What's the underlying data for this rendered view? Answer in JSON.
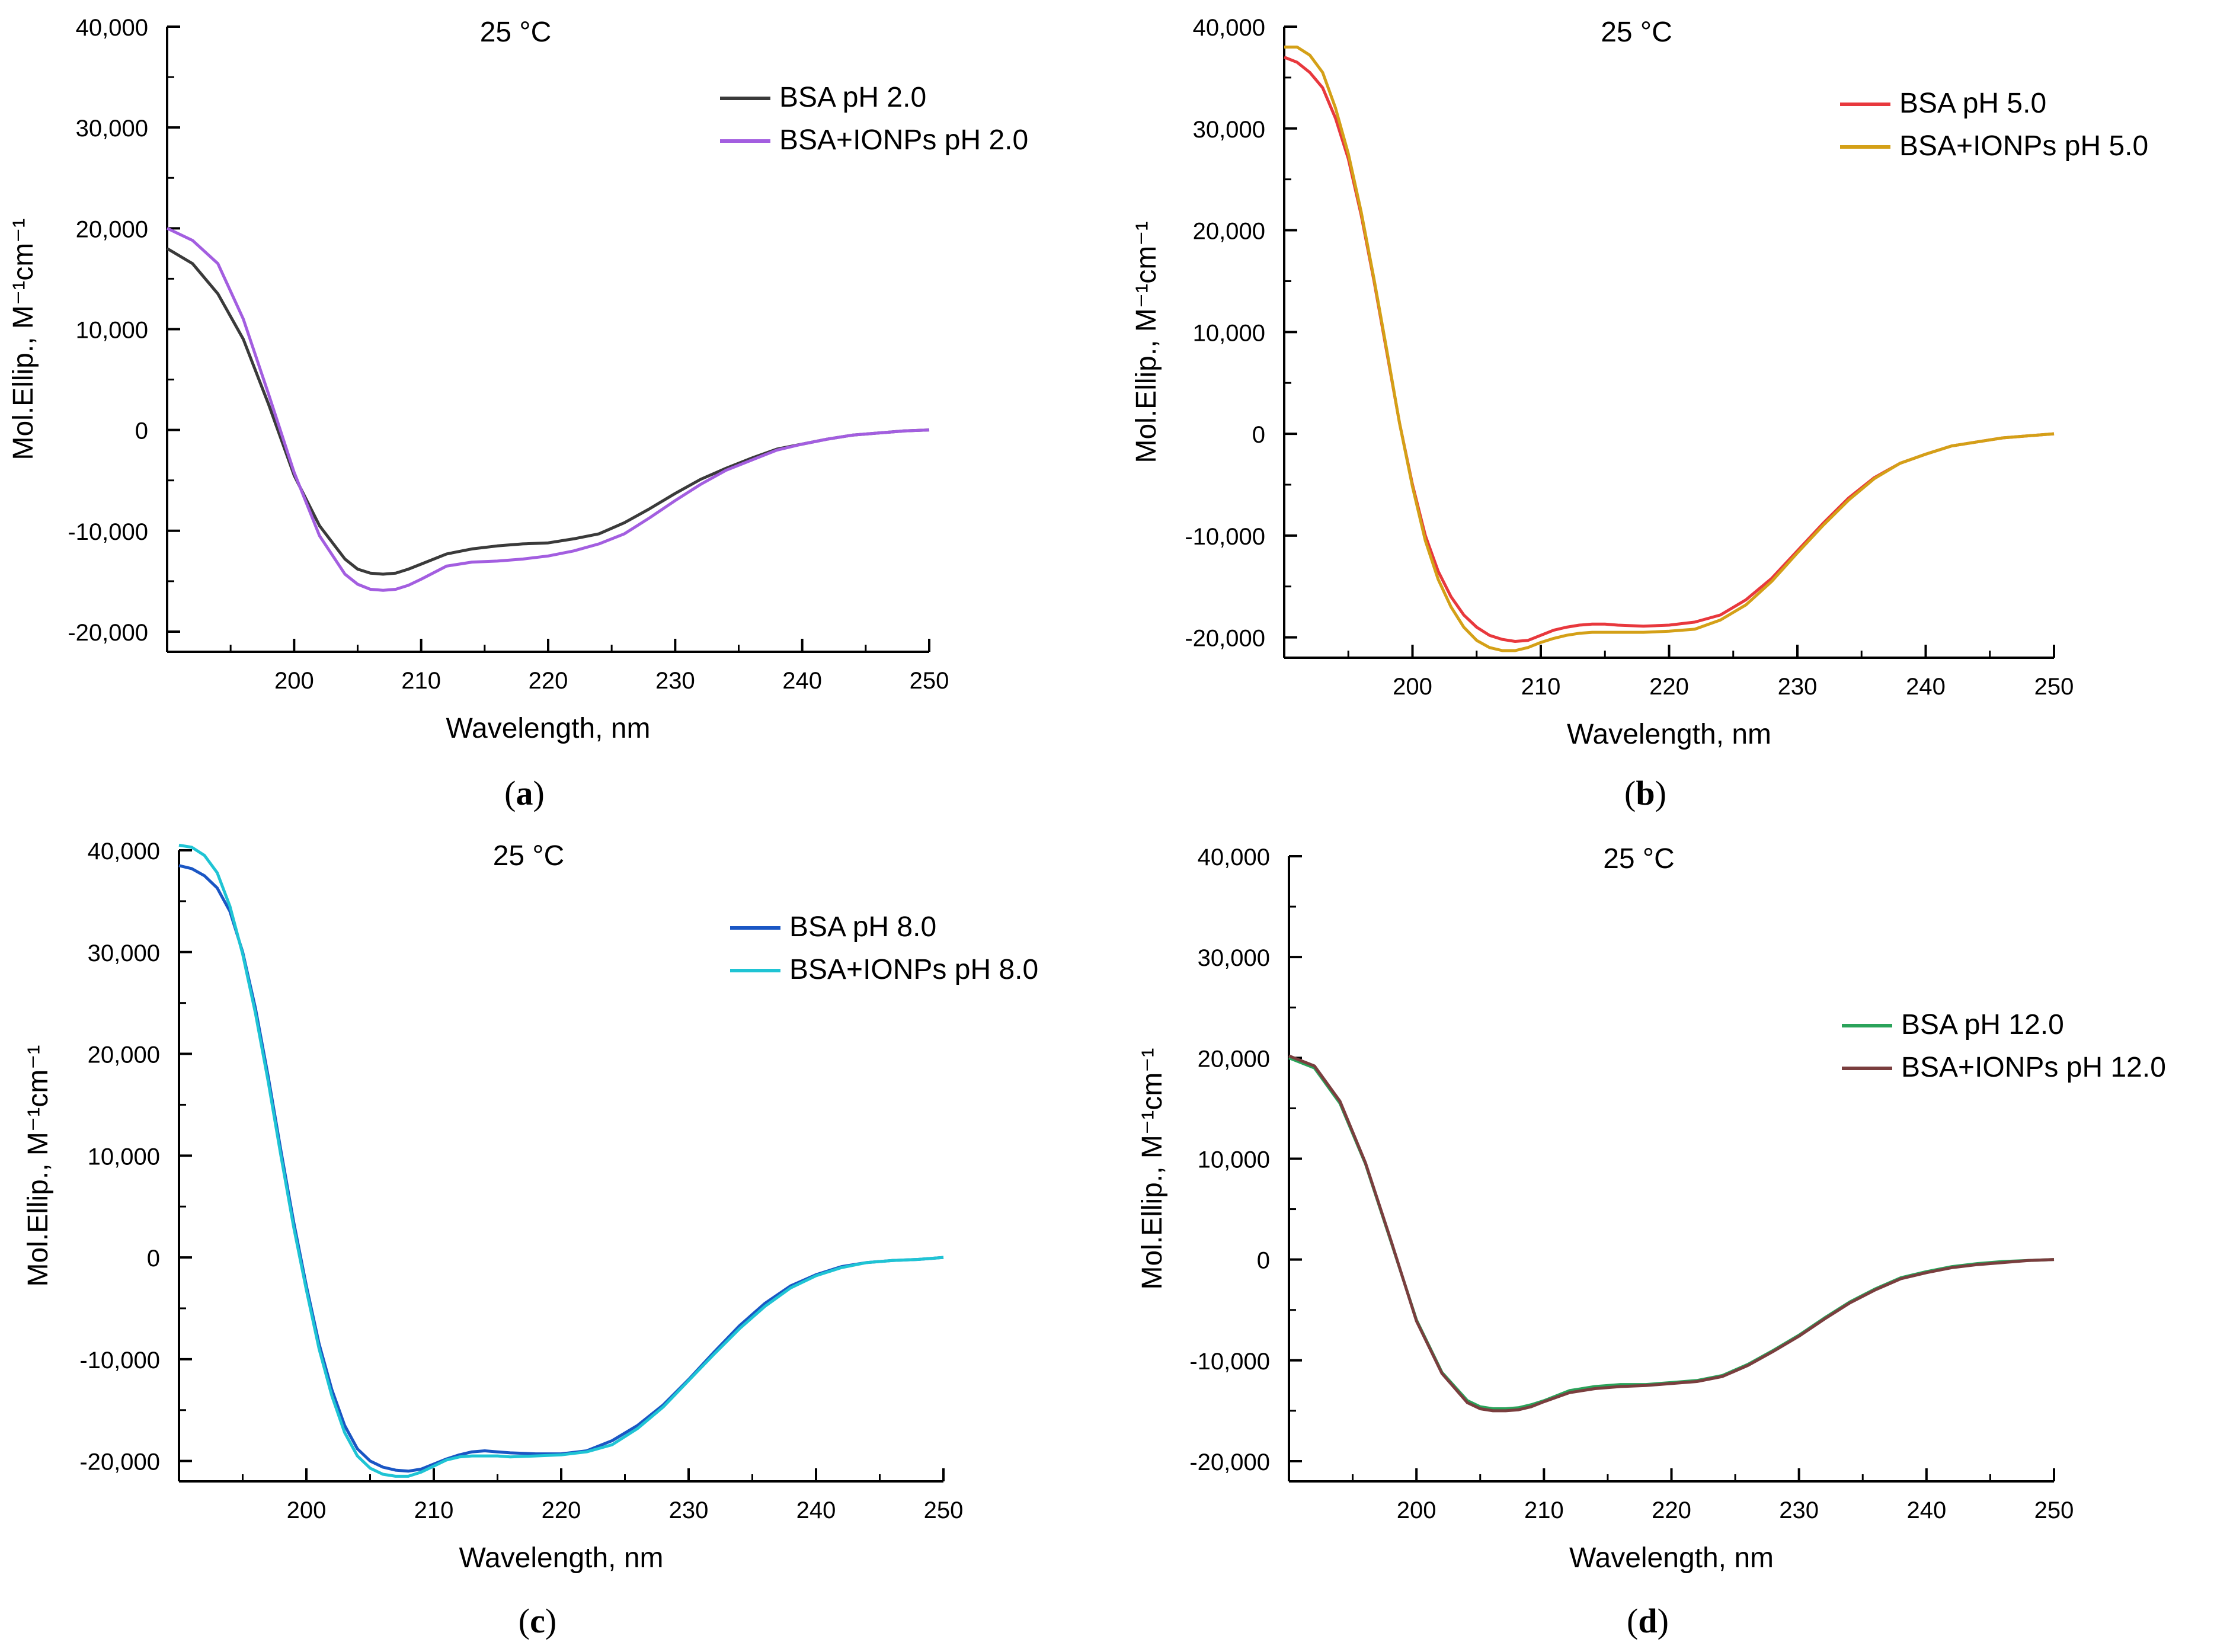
{
  "chart_data": [
    {
      "id": "a",
      "type": "line",
      "panel_label": "a",
      "title": "25 °C",
      "xlabel": "Wavelength, nm",
      "ylabel": "Mol.Ellip., M⁻¹cm⁻¹",
      "xlim": [
        190,
        250
      ],
      "ylim": [
        -22000,
        40000
      ],
      "xticks": [
        200,
        210,
        220,
        230,
        240,
        250
      ],
      "xtick_labels": [
        "200",
        "210",
        "220",
        "230",
        "240",
        "250"
      ],
      "yticks": [
        -20000,
        -10000,
        0,
        10000,
        20000,
        30000,
        40000
      ],
      "ytick_labels": [
        "-20,000",
        "-10,000",
        "0",
        "10,000",
        "20,000",
        "30,000",
        "40,000"
      ],
      "legend_position": "top-right",
      "series": [
        {
          "name": "BSA pH 2.0",
          "color": "#3a3a3a",
          "x": [
            190,
            192,
            194,
            196,
            198,
            200,
            202,
            204,
            205,
            206,
            207,
            208,
            209,
            210,
            212,
            214,
            216,
            218,
            220,
            222,
            224,
            226,
            228,
            230,
            232,
            234,
            236,
            238,
            240,
            242,
            244,
            246,
            248,
            250
          ],
          "y": [
            18000,
            16500,
            13500,
            9000,
            2500,
            -4500,
            -9500,
            -12800,
            -13800,
            -14200,
            -14300,
            -14200,
            -13800,
            -13300,
            -12300,
            -11800,
            -11500,
            -11300,
            -11200,
            -10800,
            -10300,
            -9200,
            -7800,
            -6300,
            -4900,
            -3800,
            -2800,
            -1900,
            -1400,
            -900,
            -500,
            -300,
            -100,
            0
          ]
        },
        {
          "name": "BSA+IONPs pH 2.0",
          "color": "#a35ee0",
          "x": [
            190,
            192,
            194,
            196,
            198,
            200,
            202,
            204,
            205,
            206,
            207,
            208,
            209,
            210,
            212,
            214,
            216,
            218,
            220,
            222,
            224,
            226,
            228,
            230,
            232,
            234,
            236,
            238,
            240,
            242,
            244,
            246,
            248,
            250
          ],
          "y": [
            20000,
            18800,
            16500,
            11000,
            3500,
            -4200,
            -10500,
            -14300,
            -15300,
            -15800,
            -15900,
            -15800,
            -15400,
            -14800,
            -13500,
            -13100,
            -13000,
            -12800,
            -12500,
            -12000,
            -11300,
            -10300,
            -8700,
            -7000,
            -5400,
            -4000,
            -3000,
            -2000,
            -1400,
            -900,
            -500,
            -300,
            -100,
            0
          ]
        }
      ]
    },
    {
      "id": "b",
      "type": "line",
      "panel_label": "b",
      "title": "25 °C",
      "xlabel": "Wavelength, nm",
      "ylabel": "Mol.Ellip., M⁻¹cm⁻¹",
      "xlim": [
        190,
        250
      ],
      "ylim": [
        -22000,
        40000
      ],
      "xticks": [
        200,
        210,
        220,
        230,
        240,
        250
      ],
      "xtick_labels": [
        "200",
        "210",
        "220",
        "230",
        "240",
        "250"
      ],
      "yticks": [
        -20000,
        -10000,
        0,
        10000,
        20000,
        30000,
        40000
      ],
      "ytick_labels": [
        "-20,000",
        "-10,000",
        "0",
        "10,000",
        "20,000",
        "30,000",
        "40,000"
      ],
      "legend_position": "top-right",
      "series": [
        {
          "name": "BSA pH 5.0",
          "color": "#e8383d",
          "x": [
            190,
            191,
            192,
            193,
            194,
            195,
            196,
            197,
            198,
            199,
            200,
            201,
            202,
            203,
            204,
            205,
            206,
            207,
            208,
            209,
            210,
            211,
            212,
            213,
            214,
            215,
            216,
            218,
            220,
            222,
            224,
            226,
            228,
            230,
            232,
            234,
            236,
            238,
            240,
            242,
            244,
            246,
            248,
            250
          ],
          "y": [
            37000,
            36500,
            35500,
            34000,
            31000,
            27000,
            21500,
            15000,
            8000,
            1000,
            -5000,
            -10000,
            -13500,
            -16000,
            -17800,
            -19000,
            -19800,
            -20200,
            -20400,
            -20300,
            -19800,
            -19300,
            -19000,
            -18800,
            -18700,
            -18700,
            -18800,
            -18900,
            -18800,
            -18500,
            -17800,
            -16300,
            -14200,
            -11500,
            -8800,
            -6300,
            -4300,
            -2900,
            -2000,
            -1200,
            -800,
            -400,
            -200,
            0
          ]
        },
        {
          "name": "BSA+IONPs pH 5.0",
          "color": "#d4a017",
          "x": [
            190,
            191,
            192,
            193,
            194,
            195,
            196,
            197,
            198,
            199,
            200,
            201,
            202,
            203,
            204,
            205,
            206,
            207,
            208,
            209,
            210,
            211,
            212,
            213,
            214,
            215,
            216,
            218,
            220,
            222,
            224,
            226,
            228,
            230,
            232,
            234,
            236,
            238,
            240,
            242,
            244,
            246,
            248,
            250
          ],
          "y": [
            38000,
            38000,
            37200,
            35500,
            32000,
            27500,
            21800,
            15200,
            8200,
            1000,
            -5200,
            -10500,
            -14300,
            -17000,
            -19000,
            -20300,
            -21000,
            -21300,
            -21300,
            -21000,
            -20500,
            -20100,
            -19800,
            -19600,
            -19500,
            -19500,
            -19500,
            -19500,
            -19400,
            -19200,
            -18300,
            -16800,
            -14500,
            -11700,
            -9000,
            -6500,
            -4400,
            -2900,
            -2000,
            -1200,
            -800,
            -400,
            -200,
            0
          ]
        }
      ]
    },
    {
      "id": "c",
      "type": "line",
      "panel_label": "c",
      "title": "25 °C",
      "xlabel": "Wavelength, nm",
      "ylabel": "Mol.Ellip., M⁻¹cm⁻¹",
      "xlim": [
        190,
        250
      ],
      "ylim": [
        -22000,
        40000
      ],
      "xticks": [
        200,
        210,
        220,
        230,
        240,
        250
      ],
      "xtick_labels": [
        "200",
        "210",
        "220",
        "230",
        "240",
        "250"
      ],
      "yticks": [
        -20000,
        -10000,
        0,
        10000,
        20000,
        30000,
        40000
      ],
      "ytick_labels": [
        "-20,000",
        "-10,000",
        "0",
        "10,000",
        "20,000",
        "30,000",
        "40,000"
      ],
      "legend_position": "top-right",
      "series": [
        {
          "name": "BSA pH 8.0",
          "color": "#1a56c4",
          "x": [
            190,
            191,
            192,
            193,
            194,
            195,
            196,
            197,
            198,
            199,
            200,
            201,
            202,
            203,
            204,
            205,
            206,
            207,
            208,
            209,
            210,
            211,
            212,
            213,
            214,
            215,
            216,
            218,
            220,
            222,
            224,
            226,
            228,
            230,
            232,
            234,
            236,
            238,
            240,
            242,
            244,
            246,
            248,
            250
          ],
          "y": [
            38500,
            38200,
            37500,
            36300,
            34000,
            30000,
            24500,
            17800,
            10500,
            3500,
            -2800,
            -8500,
            -13000,
            -16500,
            -18800,
            -20000,
            -20600,
            -20900,
            -21000,
            -20800,
            -20300,
            -19800,
            -19400,
            -19100,
            -19000,
            -19100,
            -19200,
            -19300,
            -19300,
            -19000,
            -18000,
            -16500,
            -14500,
            -12000,
            -9300,
            -6700,
            -4500,
            -2800,
            -1700,
            -900,
            -500,
            -300,
            -200,
            0
          ]
        },
        {
          "name": "BSA+IONPs pH 8.0",
          "color": "#1fc4d4",
          "x": [
            190,
            191,
            192,
            193,
            194,
            195,
            196,
            197,
            198,
            199,
            200,
            201,
            202,
            203,
            204,
            205,
            206,
            207,
            208,
            209,
            210,
            211,
            212,
            213,
            214,
            215,
            216,
            218,
            220,
            222,
            224,
            226,
            228,
            230,
            232,
            234,
            236,
            238,
            240,
            242,
            244,
            246,
            248,
            250
          ],
          "y": [
            40500,
            40300,
            39500,
            37800,
            34500,
            29800,
            24000,
            17300,
            10000,
            3000,
            -3200,
            -9000,
            -13600,
            -17200,
            -19500,
            -20700,
            -21300,
            -21500,
            -21500,
            -21100,
            -20500,
            -19900,
            -19600,
            -19500,
            -19500,
            -19500,
            -19600,
            -19500,
            -19400,
            -19100,
            -18400,
            -16800,
            -14700,
            -12100,
            -9500,
            -7000,
            -4800,
            -3000,
            -1800,
            -1000,
            -500,
            -300,
            -200,
            0
          ]
        }
      ]
    },
    {
      "id": "d",
      "type": "line",
      "panel_label": "d",
      "title": "25 °C",
      "xlabel": "Wavelength, nm",
      "ylabel": "Mol.Ellip., M⁻¹cm⁻¹",
      "xlim": [
        190,
        250
      ],
      "ylim": [
        -22000,
        40000
      ],
      "xticks": [
        200,
        210,
        220,
        230,
        240,
        250
      ],
      "xtick_labels": [
        "200",
        "210",
        "220",
        "230",
        "240",
        "250"
      ],
      "yticks": [
        -20000,
        -10000,
        0,
        10000,
        20000,
        30000,
        40000
      ],
      "ytick_labels": [
        "-20,000",
        "-10,000",
        "0",
        "10,000",
        "20,000",
        "30,000",
        "40,000"
      ],
      "legend_position": "right",
      "series": [
        {
          "name": "BSA pH 12.0",
          "color": "#2aa35a",
          "x": [
            190,
            192,
            194,
            196,
            198,
            200,
            202,
            204,
            205,
            206,
            207,
            208,
            209,
            210,
            212,
            214,
            216,
            218,
            220,
            222,
            224,
            226,
            228,
            230,
            232,
            234,
            236,
            238,
            240,
            242,
            244,
            246,
            248,
            250
          ],
          "y": [
            20000,
            19000,
            15500,
            9500,
            1800,
            -6000,
            -11200,
            -14000,
            -14600,
            -14800,
            -14800,
            -14700,
            -14400,
            -14000,
            -13000,
            -12600,
            -12400,
            -12400,
            -12200,
            -12000,
            -11500,
            -10400,
            -9000,
            -7500,
            -5800,
            -4200,
            -2900,
            -1800,
            -1200,
            -700,
            -400,
            -200,
            -100,
            0
          ]
        },
        {
          "name": "BSA+IONPs pH 12.0",
          "color": "#7a3e3e",
          "x": [
            190,
            192,
            194,
            196,
            198,
            200,
            202,
            204,
            205,
            206,
            207,
            208,
            209,
            210,
            212,
            214,
            216,
            218,
            220,
            222,
            224,
            226,
            228,
            230,
            232,
            234,
            236,
            238,
            240,
            242,
            244,
            246,
            248,
            250
          ],
          "y": [
            20200,
            19200,
            15700,
            9600,
            1900,
            -6100,
            -11300,
            -14200,
            -14800,
            -15000,
            -15000,
            -14900,
            -14600,
            -14100,
            -13200,
            -12800,
            -12600,
            -12500,
            -12300,
            -12100,
            -11600,
            -10500,
            -9100,
            -7600,
            -5900,
            -4300,
            -3000,
            -1900,
            -1300,
            -800,
            -500,
            -300,
            -100,
            0
          ]
        }
      ]
    }
  ]
}
